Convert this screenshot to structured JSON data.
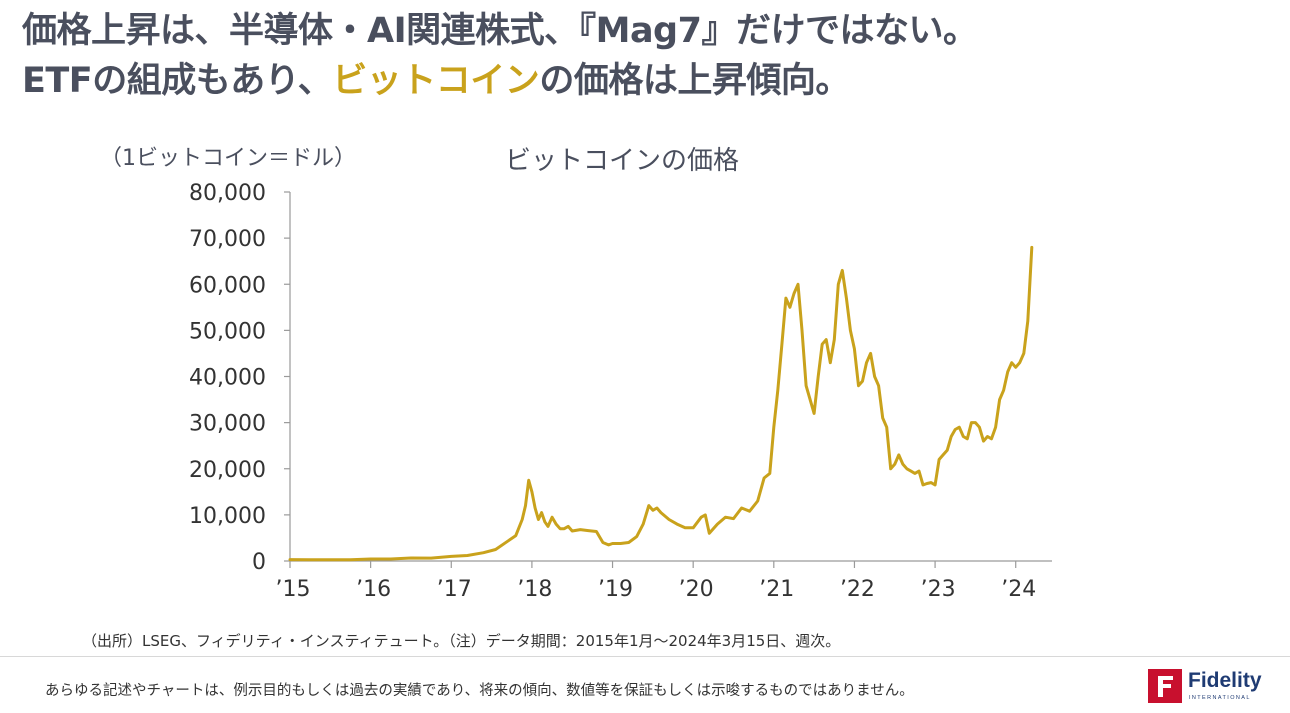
{
  "headline": {
    "line1": "価格上昇は、半導体・AI関連株式、『Mag7』だけではない。",
    "line2_prefix": "ETFの組成もあり、",
    "line2_highlight": "ビットコイン",
    "line2_suffix": "の価格は上昇傾向。"
  },
  "colors": {
    "text": "#4a4f5e",
    "accent": "#c9a21c",
    "series": "#c9a21c",
    "brand_red": "#c8102e",
    "brand_blue": "#1f3b73"
  },
  "chart_data": {
    "type": "line",
    "title": "ビットコインの価格",
    "ylabel": "（1ビットコイン＝ドル）",
    "xlabel": "",
    "ylim": [
      0,
      80000
    ],
    "yticks": [
      0,
      10000,
      20000,
      30000,
      40000,
      50000,
      60000,
      70000,
      80000
    ],
    "ytick_labels": [
      "0",
      "10,000",
      "20,000",
      "30,000",
      "40,000",
      "50,000",
      "60,000",
      "70,000",
      "80,000"
    ],
    "xlim": [
      2015.0,
      2024.45
    ],
    "xticks": [
      2015,
      2016,
      2017,
      2018,
      2019,
      2020,
      2021,
      2022,
      2023,
      2024
    ],
    "xtick_labels": [
      "’15",
      "’16",
      "’17",
      "’18",
      "’19",
      "’20",
      "’21",
      "’22",
      "’23",
      "’24"
    ],
    "grid": false,
    "series": [
      {
        "name": "ビットコイン",
        "x": [
          2015.0,
          2015.25,
          2015.5,
          2015.75,
          2016.0,
          2016.25,
          2016.5,
          2016.75,
          2017.0,
          2017.2,
          2017.4,
          2017.55,
          2017.7,
          2017.8,
          2017.88,
          2017.92,
          2017.96,
          2018.0,
          2018.04,
          2018.08,
          2018.12,
          2018.16,
          2018.2,
          2018.25,
          2018.3,
          2018.35,
          2018.4,
          2018.45,
          2018.5,
          2018.6,
          2018.7,
          2018.8,
          2018.88,
          2018.95,
          2019.0,
          2019.1,
          2019.2,
          2019.3,
          2019.38,
          2019.45,
          2019.5,
          2019.55,
          2019.6,
          2019.7,
          2019.8,
          2019.9,
          2020.0,
          2020.1,
          2020.15,
          2020.2,
          2020.3,
          2020.4,
          2020.5,
          2020.6,
          2020.7,
          2020.8,
          2020.88,
          2020.95,
          2021.0,
          2021.05,
          2021.1,
          2021.15,
          2021.2,
          2021.25,
          2021.3,
          2021.35,
          2021.4,
          2021.45,
          2021.5,
          2021.55,
          2021.6,
          2021.65,
          2021.7,
          2021.75,
          2021.8,
          2021.85,
          2021.9,
          2021.95,
          2022.0,
          2022.05,
          2022.1,
          2022.15,
          2022.2,
          2022.25,
          2022.3,
          2022.35,
          2022.4,
          2022.45,
          2022.5,
          2022.55,
          2022.6,
          2022.65,
          2022.7,
          2022.75,
          2022.8,
          2022.85,
          2022.9,
          2022.95,
          2023.0,
          2023.05,
          2023.1,
          2023.15,
          2023.2,
          2023.25,
          2023.3,
          2023.35,
          2023.4,
          2023.45,
          2023.5,
          2023.55,
          2023.6,
          2023.65,
          2023.7,
          2023.75,
          2023.8,
          2023.85,
          2023.9,
          2023.95,
          2024.0,
          2024.05,
          2024.1,
          2024.15,
          2024.2
        ],
        "values": [
          300,
          250,
          270,
          280,
          430,
          430,
          650,
          620,
          1000,
          1200,
          1800,
          2500,
          4300,
          5500,
          9000,
          12000,
          17500,
          15000,
          11500,
          9000,
          10500,
          8500,
          7500,
          9500,
          8000,
          7000,
          7000,
          7500,
          6500,
          6800,
          6600,
          6400,
          4000,
          3500,
          3800,
          3800,
          4000,
          5300,
          8000,
          12000,
          11000,
          11500,
          10500,
          9000,
          8000,
          7200,
          7200,
          9500,
          10000,
          6000,
          8000,
          9500,
          9200,
          11500,
          10800,
          13000,
          18000,
          19000,
          29000,
          37000,
          47000,
          57000,
          55000,
          58000,
          60000,
          50000,
          38000,
          35000,
          32000,
          40000,
          47000,
          48000,
          43000,
          48000,
          60000,
          63000,
          57000,
          50000,
          46000,
          38000,
          39000,
          43000,
          45000,
          40000,
          38000,
          31000,
          29000,
          20000,
          21000,
          23000,
          21000,
          20000,
          19500,
          19000,
          19500,
          16500,
          16800,
          17000,
          16500,
          22000,
          23000,
          24000,
          27000,
          28500,
          29000,
          27000,
          26500,
          30000,
          30000,
          29000,
          26000,
          27000,
          26500,
          29000,
          35000,
          37000,
          41000,
          43000,
          42000,
          43000,
          45000,
          52000,
          68000
        ]
      }
    ]
  },
  "source_note": "（出所）LSEG、フィデリティ・インスティテュート。（注）データ期間：2015年1月～2024年3月15日、週次。",
  "disclaimer": "あらゆる記述やチャートは、例示目的もしくは過去の実績であり、将来の傾向、数値等を保証もしくは示唆するものではありません。",
  "logo": {
    "mark": "F",
    "name": "Fidelity",
    "sub": "INTERNATIONAL"
  }
}
